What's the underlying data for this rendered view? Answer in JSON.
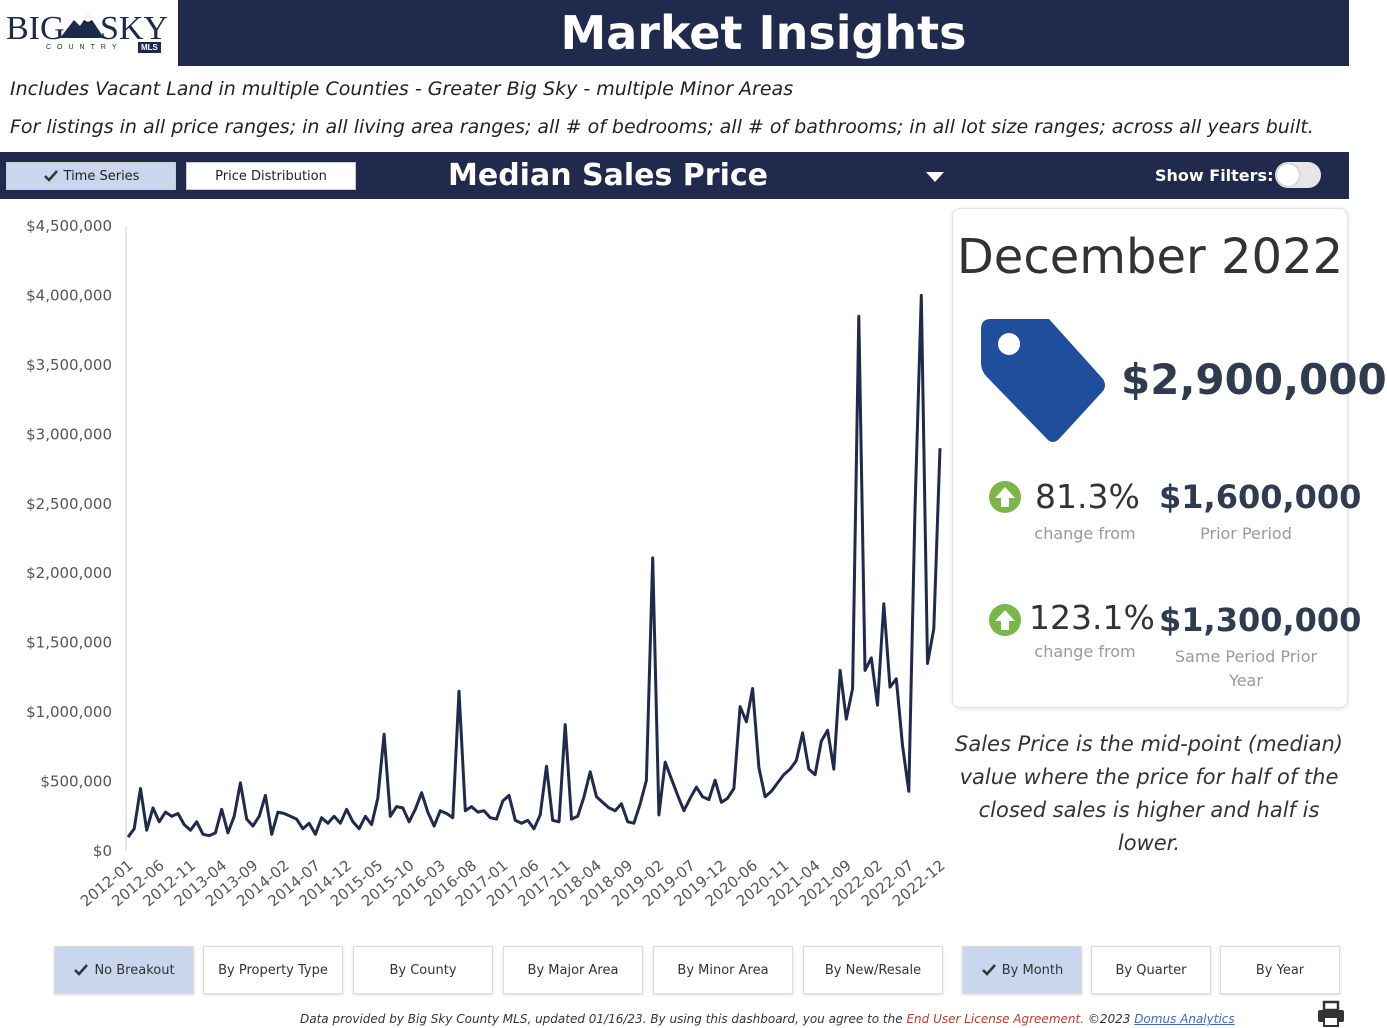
{
  "logo": {
    "big": "BIG",
    "sky": "SKY",
    "country": "COUNTRY",
    "mls": "MLS"
  },
  "header": {
    "title": "Market Insights"
  },
  "subtitles": {
    "line1": "Includes Vacant Land in multiple Counties - Greater Big Sky - multiple Minor Areas",
    "line2": "For listings in all price ranges; in all living area ranges; all # of bedrooms; all # of bathrooms; in all lot size ranges; across all years built."
  },
  "nav": {
    "time_series": "Time Series",
    "price_distribution": "Price Distribution",
    "metric": "Median Sales Price",
    "show_filters": "Show Filters:"
  },
  "colors": {
    "navy": "#1f2a4d",
    "active_button": "#c9d6ee",
    "tag_blue": "#1f4e9c",
    "up_green": "#7ab648"
  },
  "summary": {
    "period": "December 2022",
    "price": "$2,900,000",
    "change1": {
      "pct": "81.3%",
      "label": "change from",
      "value": "$1,600,000",
      "value_label": "Prior Period"
    },
    "change2": {
      "pct": "123.1%",
      "label": "change from",
      "value": "$1,300,000",
      "value_label_1": "Same Period Prior",
      "value_label_2": "Year"
    }
  },
  "explanation": {
    "line1": "Sales Price is the mid-point (median)",
    "line2": "value where the price for half of the",
    "line3": "closed sales is higher and half is lower."
  },
  "breakout_buttons": [
    "No Breakout",
    "By Property Type",
    "By County",
    "By Major Area",
    "By Minor Area",
    "By New/Resale"
  ],
  "period_buttons": [
    "By Month",
    "By Quarter",
    "By Year"
  ],
  "footer": {
    "text": "Data provided by Big Sky County MLS, updated 01/16/23.  By using this dashboard, you agree to the ",
    "eula": "End User License Agreement.",
    "copyright": "  ©2023 ",
    "link": "Domus Analytics"
  },
  "chart_data": {
    "type": "line",
    "y_ticks": [
      "$4,500,000",
      "$4,000,000",
      "$3,500,000",
      "$3,000,000",
      "$2,500,000",
      "$2,000,000",
      "$1,500,000",
      "$1,000,000",
      "$500,000",
      "$0"
    ],
    "ylim": [
      0,
      4500000
    ],
    "x_ticks": [
      "2012-01",
      "2012-06",
      "2012-11",
      "2013-04",
      "2013-09",
      "2014-02",
      "2014-07",
      "2014-12",
      "2015-05",
      "2015-10",
      "2016-03",
      "2016-08",
      "2017-01",
      "2017-06",
      "2017-11",
      "2018-04",
      "2018-09",
      "2019-02",
      "2019-07",
      "2019-12",
      "2020-06",
      "2020-11",
      "2021-04",
      "2021-09",
      "2022-02",
      "2022-07",
      "2022-12"
    ],
    "series": [
      {
        "start": "2012-01",
        "values": [
          100000,
          160000,
          450000,
          150000,
          310000,
          210000,
          280000,
          250000,
          270000,
          190000,
          150000,
          210000,
          120000,
          110000,
          130000,
          300000,
          130000,
          250000,
          490000,
          230000,
          180000,
          250000,
          400000,
          120000,
          280000,
          270000,
          250000,
          230000,
          160000,
          200000,
          120000,
          240000,
          200000,
          250000,
          200000,
          300000,
          210000,
          160000,
          250000,
          190000,
          380000,
          840000,
          250000,
          320000,
          310000,
          210000,
          300000,
          420000,
          280000,
          180000,
          290000,
          270000,
          240000,
          1150000,
          290000,
          320000,
          280000,
          290000,
          240000,
          230000,
          360000,
          400000,
          220000,
          200000,
          220000,
          160000,
          260000,
          610000,
          220000,
          210000,
          910000,
          230000,
          250000,
          390000,
          570000,
          390000,
          350000,
          310000,
          290000,
          340000,
          210000,
          200000,
          340000,
          510000,
          2110000,
          260000,
          640000,
          520000,
          400000,
          290000,
          380000,
          460000,
          390000,
          370000,
          510000,
          350000,
          380000,
          450000,
          1040000,
          930000,
          1170000,
          600000,
          390000,
          430000,
          490000,
          550000,
          590000,
          650000,
          850000,
          590000,
          550000,
          790000,
          870000,
          590000,
          1300000,
          950000,
          1170000,
          3850000,
          1300000,
          1390000,
          1050000,
          1780000,
          1180000,
          1240000,
          760000,
          430000,
          2460000,
          4000000,
          1350000,
          1600000,
          2900000
        ]
      }
    ]
  }
}
